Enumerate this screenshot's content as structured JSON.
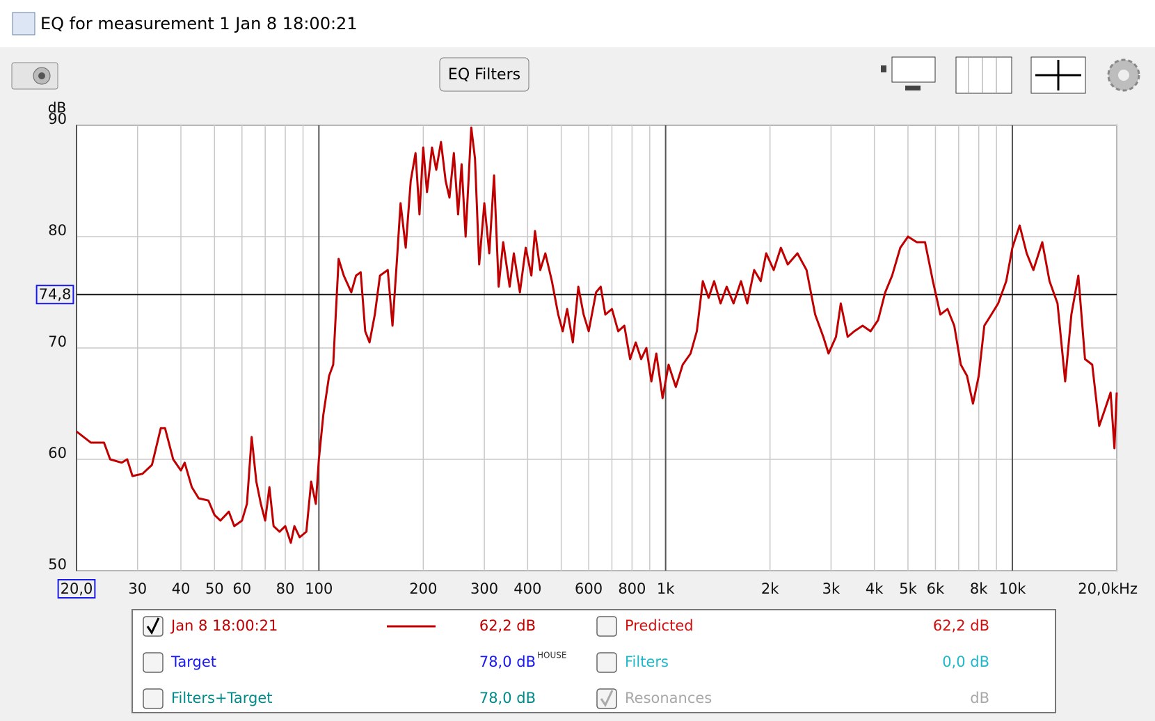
{
  "window": {
    "title": "EQ for measurement 1 Jan 8 18:00:21"
  },
  "toolbar": {
    "button": "EQ Filters"
  },
  "chart_data": {
    "type": "line",
    "y_label": "dB",
    "xscale": "log",
    "grid": true,
    "xlim": [
      20,
      20000
    ],
    "ylim": [
      50,
      90
    ],
    "yticks": [
      50,
      60,
      70,
      80,
      90
    ],
    "xticks": [
      {
        "value": 20,
        "label": "20,0"
      },
      30,
      40,
      50,
      60,
      80,
      100,
      200,
      300,
      400,
      600,
      800,
      {
        "value": 1000,
        "label": "1k"
      },
      {
        "value": 2000,
        "label": "2k"
      },
      {
        "value": 3000,
        "label": "3k"
      },
      {
        "value": 4000,
        "label": "4k"
      },
      {
        "value": 5000,
        "label": "5k"
      },
      {
        "value": 6000,
        "label": "6k"
      },
      {
        "value": 8000,
        "label": "8k"
      },
      {
        "value": 10000,
        "label": "10k"
      },
      {
        "value": 20000,
        "label": "20,0kHz"
      }
    ],
    "minor_xticks": [
      70,
      90,
      500,
      700,
      900,
      7000,
      9000
    ],
    "major_xticks": [
      100,
      1000,
      10000
    ],
    "cursor": {
      "value": 74.8,
      "label": "74,8"
    },
    "series": [
      {
        "name": "Jan 8 18:00:21",
        "color": "#c00000",
        "x": [
          20,
          22,
          24,
          25,
          27,
          28,
          29,
          31,
          33,
          35,
          36,
          38,
          40,
          41,
          43,
          45,
          48,
          50,
          52,
          55,
          57,
          60,
          62,
          64,
          66,
          68,
          70,
          72,
          74,
          77,
          80,
          83,
          85,
          88,
          92,
          95,
          98,
          100,
          103,
          107,
          110,
          114,
          118,
          124,
          128,
          132,
          136,
          140,
          145,
          150,
          158,
          163,
          168,
          172,
          178,
          184,
          190,
          195,
          200,
          205,
          212,
          218,
          225,
          232,
          238,
          245,
          252,
          258,
          265,
          275,
          282,
          290,
          300,
          310,
          320,
          330,
          340,
          355,
          365,
          380,
          395,
          410,
          420,
          435,
          450,
          470,
          490,
          505,
          520,
          540,
          560,
          580,
          600,
          630,
          650,
          670,
          700,
          730,
          760,
          790,
          820,
          850,
          880,
          910,
          940,
          980,
          1020,
          1070,
          1120,
          1180,
          1230,
          1280,
          1330,
          1380,
          1440,
          1500,
          1570,
          1650,
          1720,
          1800,
          1880,
          1950,
          2050,
          2150,
          2250,
          2400,
          2550,
          2700,
          2850,
          2950,
          3100,
          3200,
          3350,
          3500,
          3700,
          3900,
          4100,
          4300,
          4500,
          4750,
          5000,
          5300,
          5600,
          5900,
          6200,
          6500,
          6800,
          7100,
          7400,
          7700,
          8000,
          8300,
          8700,
          9100,
          9600,
          10000,
          10500,
          11000,
          11500,
          12200,
          12800,
          13500,
          14200,
          14800,
          15500,
          16200,
          17000,
          17800,
          18500,
          19200,
          19700,
          20000
        ],
        "values": [
          62.5,
          61.5,
          61.5,
          60,
          59.7,
          60,
          58.5,
          58.7,
          59.5,
          62.8,
          62.8,
          60,
          59,
          59.7,
          57.5,
          56.5,
          56.3,
          55,
          54.5,
          55.3,
          54,
          54.5,
          56,
          62,
          58,
          56,
          54.5,
          57.5,
          54,
          53.5,
          54,
          52.5,
          54,
          53,
          53.5,
          58,
          56,
          60,
          64,
          67.5,
          68.5,
          78,
          76.5,
          75,
          76.5,
          76.8,
          71.5,
          70.5,
          73,
          76.5,
          77,
          72,
          78,
          83,
          79,
          85,
          87.5,
          82,
          88,
          84,
          88,
          86,
          88.5,
          85,
          83.5,
          87.5,
          82,
          86.5,
          80,
          89.8,
          87,
          77.5,
          83,
          78.5,
          85.5,
          75.5,
          79.5,
          75.5,
          78.5,
          75,
          79,
          76.5,
          80.5,
          77,
          78.5,
          76,
          73,
          71.5,
          73.5,
          70.5,
          75.5,
          73,
          71.5,
          75,
          75.5,
          73,
          73.5,
          71.5,
          72,
          69,
          70.5,
          69,
          70,
          67,
          69.5,
          65.5,
          68.5,
          66.5,
          68.5,
          69.5,
          71.5,
          76,
          74.5,
          76,
          74,
          75.5,
          74,
          76,
          74,
          77,
          76,
          78.5,
          77,
          79,
          77.5,
          78.5,
          77,
          73,
          71,
          69.5,
          71,
          74,
          71,
          71.5,
          72,
          71.5,
          72.5,
          75,
          76.5,
          79,
          80,
          79.5,
          79.5,
          76,
          73,
          73.5,
          72,
          68.5,
          67.5,
          65,
          67.5,
          72,
          73,
          74,
          76,
          79,
          81,
          78.5,
          77,
          79.5,
          76,
          74,
          67,
          73,
          76.5,
          69,
          68.5,
          63,
          64.5,
          66,
          61,
          66
        ]
      }
    ]
  },
  "legend": {
    "series_value": "62,2 dB",
    "items": [
      {
        "label": "Target",
        "value": "78,0 dB",
        "superscript": "HOUSE",
        "color": "#1a1aee",
        "checked": false
      },
      {
        "label": "Filters+Target",
        "value": "78,0 dB",
        "color": "#008a8a",
        "checked": false
      },
      {
        "label": "Predicted",
        "value": "62,2 dB",
        "color": "#d01010",
        "checked": false
      },
      {
        "label": "Filters",
        "value": "0,0 dB",
        "color": "#20b8c8",
        "checked": false
      },
      {
        "label": "Resonances",
        "value": "dB",
        "color": "#a8a8a8",
        "checked": true
      }
    ]
  }
}
